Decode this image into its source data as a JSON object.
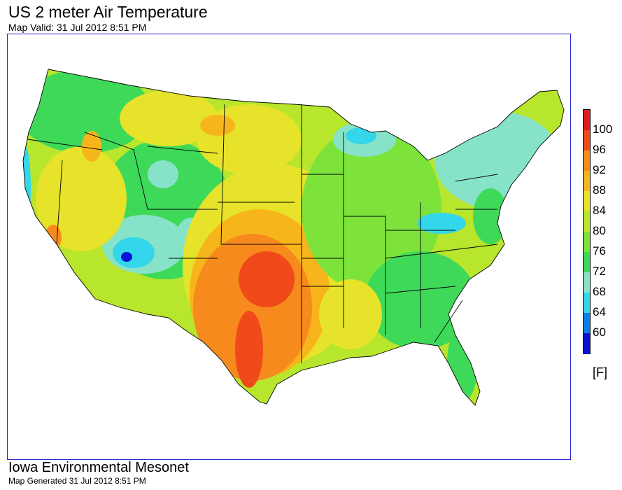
{
  "header": {
    "title": "US 2 meter Air Temperature",
    "valid_time": "Map Valid: 31 Jul 2012 8:51 PM"
  },
  "legend": {
    "unit": "[F]",
    "levels": [
      {
        "value": "100",
        "color": "#e41a1c"
      },
      {
        "value": "96",
        "color": "#f04a1a"
      },
      {
        "value": "92",
        "color": "#f78a1c"
      },
      {
        "value": "88",
        "color": "#f7b51c"
      },
      {
        "value": "84",
        "color": "#e6e32a"
      },
      {
        "value": "80",
        "color": "#b7e62c"
      },
      {
        "value": "76",
        "color": "#7de33a"
      },
      {
        "value": "72",
        "color": "#3fd95a"
      },
      {
        "value": "68",
        "color": "#86e3c8"
      },
      {
        "value": "64",
        "color": "#33d6ea"
      },
      {
        "value": "60",
        "color": "#0c7fe6"
      }
    ],
    "bottom_color": "#0a14d8"
  },
  "footer": {
    "organization": "Iowa Environmental Mesonet",
    "generated": "Map Generated 31 Jul 2012 8:51 PM"
  }
}
